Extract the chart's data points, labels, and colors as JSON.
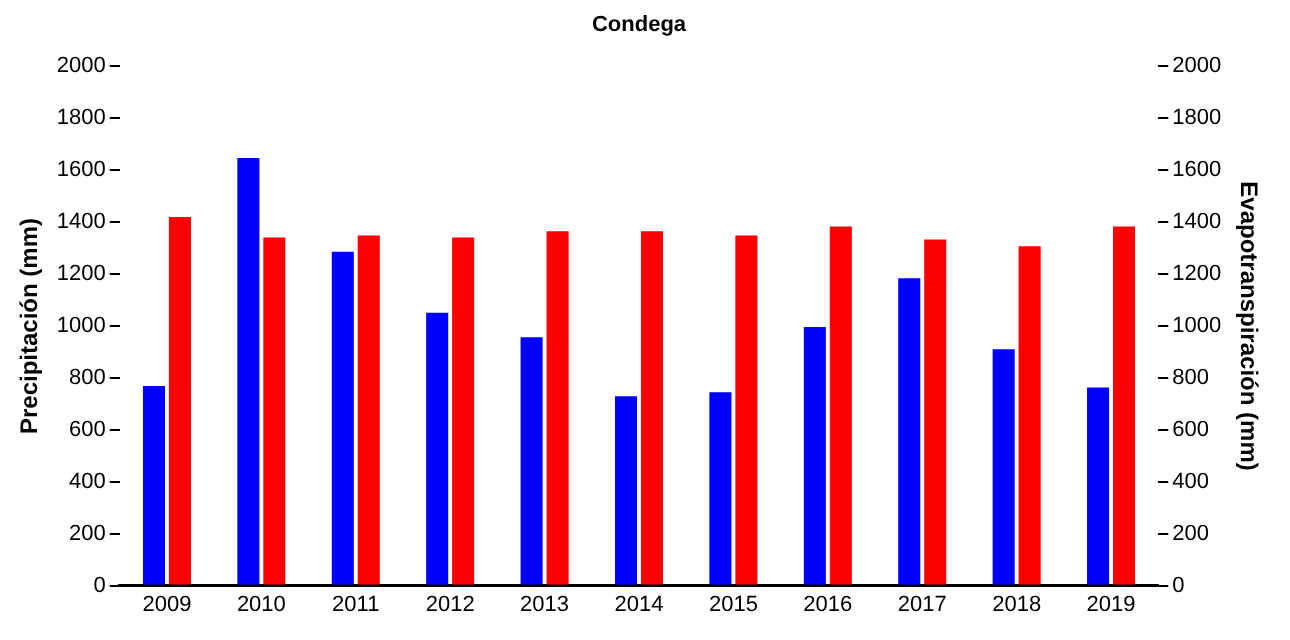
{
  "chart_data": {
    "type": "bar",
    "title": "Condega",
    "ylabel": "Precipitación (mm)",
    "y2label": "Evapotranspiración (mm)",
    "categories": [
      "2009",
      "2010",
      "2011",
      "2012",
      "2013",
      "2014",
      "2015",
      "2016",
      "2017",
      "2018",
      "2019"
    ],
    "series": [
      {
        "color": "#0000ff",
        "values": [
          769,
          1647,
          1286,
          1051,
          957,
          729,
          745,
          996,
          1184,
          910,
          763
        ]
      },
      {
        "color": "#ff0000",
        "values": [
          1420,
          1341,
          1349,
          1341,
          1365,
          1365,
          1349,
          1383,
          1333,
          1307,
          1383
        ]
      }
    ],
    "ylim": [
      0,
      2000
    ],
    "yticks": [
      0,
      200,
      400,
      600,
      800,
      1000,
      1200,
      1400,
      1600,
      1800,
      2000
    ],
    "y2lim": [
      0,
      2000
    ],
    "y2ticks": [
      0,
      200,
      400,
      600,
      800,
      1000,
      1200,
      1400,
      1600,
      1800,
      2000
    ],
    "grid": false,
    "legend": false
  }
}
